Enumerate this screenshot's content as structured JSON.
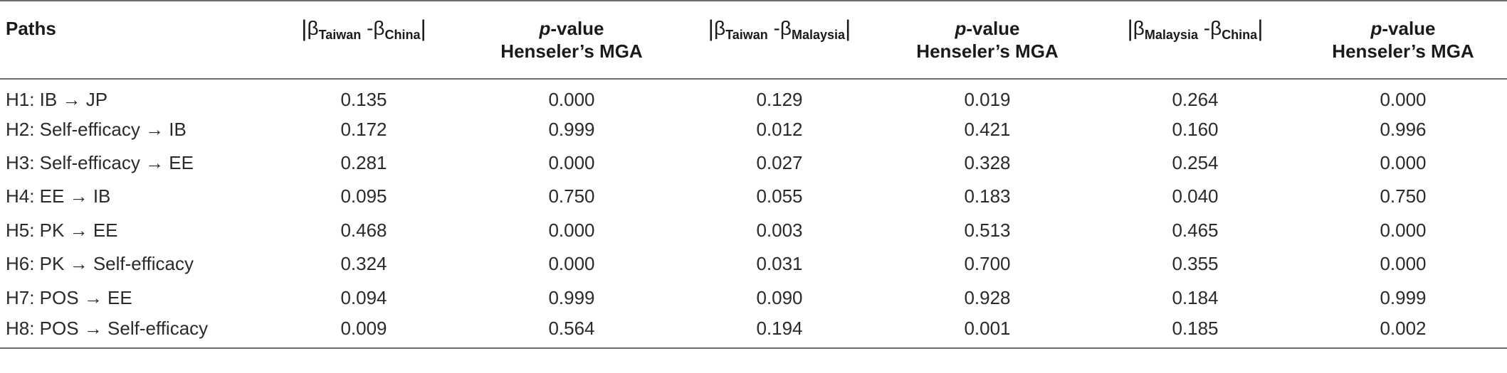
{
  "table": {
    "headers": {
      "paths": "Paths",
      "beta_symbol": "β",
      "col1": {
        "sub_a": "Taiwan",
        "sub_b": "China"
      },
      "col2_line1": "-value",
      "col2_p": "p",
      "col2_line2": "Henseler’s MGA",
      "col3": {
        "sub_a": "Taiwan",
        "sub_b": "Malaysia"
      },
      "col4_line1": "-value",
      "col4_p": "p",
      "col4_line2": "Henseler’s MGA",
      "col5": {
        "sub_a": "Malaysia",
        "sub_b": "China"
      },
      "col6_line1": "-value",
      "col6_p": "p",
      "col6_line2": "Henseler’s MGA"
    },
    "rows": [
      {
        "path": "H1: IB → JP",
        "v1": "0.135",
        "v2": "0.000",
        "v3": "0.129",
        "v4": "0.019",
        "v5": "0.264",
        "v6": "0.000"
      },
      {
        "path": "H2: Self-efficacy → IB",
        "v1": "0.172",
        "v2": "0.999",
        "v3": "0.012",
        "v4": "0.421",
        "v5": "0.160",
        "v6": "0.996"
      },
      {
        "path": "H3: Self-efficacy → EE",
        "v1": "0.281",
        "v2": "0.000",
        "v3": "0.027",
        "v4": "0.328",
        "v5": "0.254",
        "v6": "0.000"
      },
      {
        "path": "H4: EE → IB",
        "v1": "0.095",
        "v2": "0.750",
        "v3": "0.055",
        "v4": "0.183",
        "v5": "0.040",
        "v6": "0.750"
      },
      {
        "path": "H5: PK → EE",
        "v1": "0.468",
        "v2": "0.000",
        "v3": "0.003",
        "v4": "0.513",
        "v5": "0.465",
        "v6": "0.000"
      },
      {
        "path": "H6: PK → Self-efficacy",
        "v1": "0.324",
        "v2": "0.000",
        "v3": "0.031",
        "v4": "0.700",
        "v5": "0.355",
        "v6": "0.000"
      },
      {
        "path": "H7: POS → EE",
        "v1": "0.094",
        "v2": "0.999",
        "v3": "0.090",
        "v4": "0.928",
        "v5": "0.184",
        "v6": "0.999"
      },
      {
        "path": "H8: POS → Self-efficacy",
        "v1": "0.009",
        "v2": "0.564",
        "v3": "0.194",
        "v4": "0.001",
        "v5": "0.185",
        "v6": "0.002"
      }
    ]
  }
}
